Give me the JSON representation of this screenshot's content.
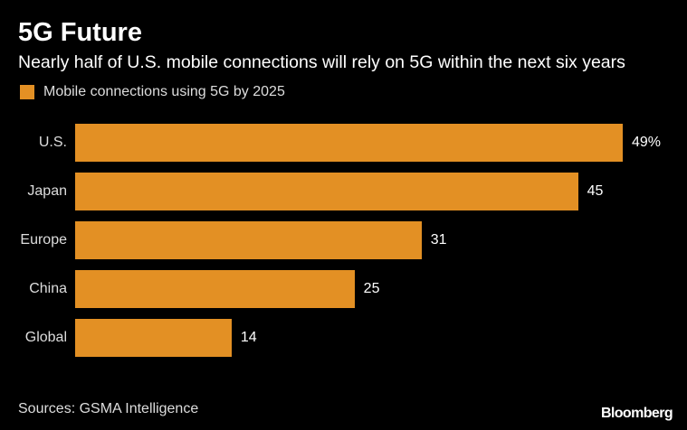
{
  "colors": {
    "background": "#000000",
    "bar": "#e39024",
    "text": "#ffffff",
    "muted_text": "#dddddd"
  },
  "header": {
    "title": "5G Future",
    "subtitle": "Nearly half of U.S. mobile connections will rely on 5G within the next six years"
  },
  "footer": {
    "source": "Sources: GSMA Intelligence",
    "brand": "Bloomberg"
  },
  "chart_data": {
    "type": "bar",
    "orientation": "horizontal",
    "title": "5G Future",
    "subtitle": "Nearly half of U.S. mobile connections will rely on 5G within the next six years",
    "xlabel": "",
    "ylabel": "",
    "xlim": [
      0,
      49
    ],
    "grid": false,
    "legend_position": "top-left",
    "categories": [
      "U.S.",
      "Japan",
      "Europe",
      "China",
      "Global"
    ],
    "series": [
      {
        "name": "Mobile connections using 5G by 2025",
        "values": [
          49,
          45,
          31,
          25,
          14
        ],
        "labels": [
          "49%",
          "45",
          "31",
          "25",
          "14"
        ]
      }
    ]
  }
}
